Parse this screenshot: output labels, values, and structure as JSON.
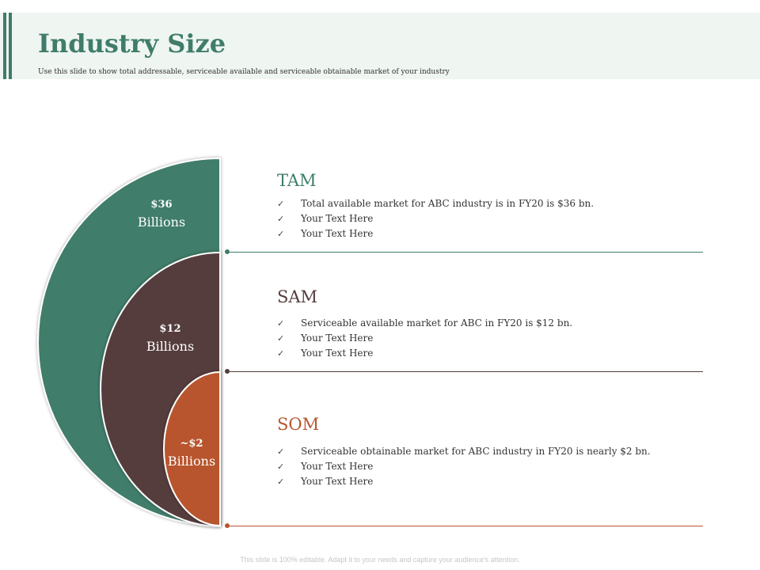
{
  "slide": {
    "title": "Industry Size",
    "subtitle": "Use this slide to show total addressable, serviceable available and serviceable obtainable market of your industry",
    "footer": "This slide is 100% editable. Adapt it to your needs and capture your audience's attention."
  },
  "colors": {
    "tam": "#3f7d6a",
    "sam": "#563c3c",
    "som": "#b8552f"
  },
  "rings": [
    {
      "amount": "$36",
      "unit": "Billions"
    },
    {
      "amount": "$12",
      "unit": "Billions"
    },
    {
      "amount": "~$2",
      "unit": "Billions"
    }
  ],
  "sections": [
    {
      "heading": "TAM",
      "bullets": [
        "Total available market for ABC industry is in FY20 is $36 bn.",
        "Your Text Here",
        "Your Text Here"
      ]
    },
    {
      "heading": "SAM",
      "bullets": [
        "Serviceable available market for ABC in FY20 is $12 bn.",
        "Your Text Here",
        "Your Text Here"
      ]
    },
    {
      "heading": "SOM",
      "bullets": [
        "Serviceable obtainable market for ABC industry in FY20 is nearly $2 bn.",
        "Your Text Here",
        "Your Text Here"
      ]
    }
  ]
}
